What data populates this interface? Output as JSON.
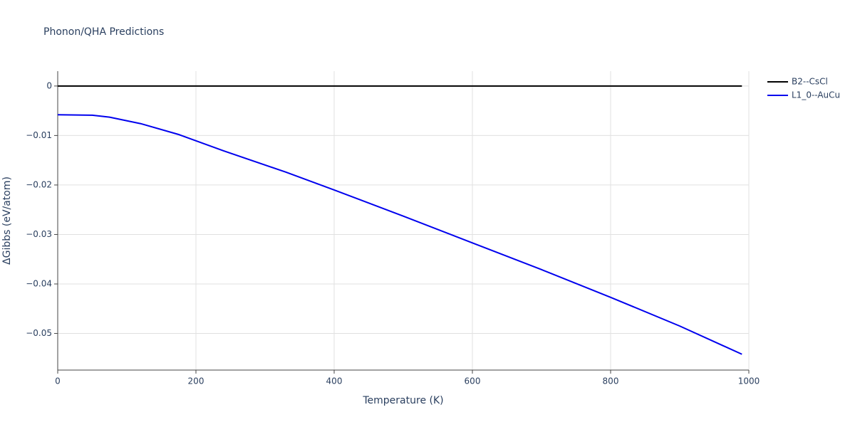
{
  "chart_data": {
    "type": "line",
    "title": "Phonon/QHA Predictions",
    "x_label": "Temperature (K)",
    "y_label": "ΔGibbs (eV/atom)",
    "x": [
      0,
      50,
      75,
      120,
      175,
      240,
      330,
      400,
      500,
      600,
      700,
      800,
      900,
      990
    ],
    "series": [
      {
        "name": "B2--CsCl",
        "color": "#000000",
        "values": [
          0,
          0,
          0,
          0,
          0,
          0,
          0,
          0,
          0,
          0,
          0,
          0,
          0,
          0
        ]
      },
      {
        "name": "L1_0--AuCu",
        "color": "#0000ee",
        "values": [
          -0.0058,
          -0.0059,
          -0.0063,
          -0.0076,
          -0.0098,
          -0.0131,
          -0.0174,
          -0.021,
          -0.0263,
          -0.0317,
          -0.0371,
          -0.0427,
          -0.0485,
          -0.0542
        ]
      }
    ],
    "xlim": [
      0,
      1000
    ],
    "xticks": [
      0,
      200,
      400,
      600,
      800,
      1000
    ],
    "ylim": [
      -0.0574,
      0.003
    ],
    "yticks": [
      0,
      {
        "value": -0.01,
        "label": "−0.01"
      },
      {
        "value": -0.02,
        "label": "−0.02"
      },
      {
        "value": -0.03,
        "label": "−0.03"
      },
      {
        "value": -0.04,
        "label": "−0.04"
      },
      {
        "value": -0.05,
        "label": "−0.05"
      }
    ],
    "grid": true,
    "legend": "right"
  }
}
